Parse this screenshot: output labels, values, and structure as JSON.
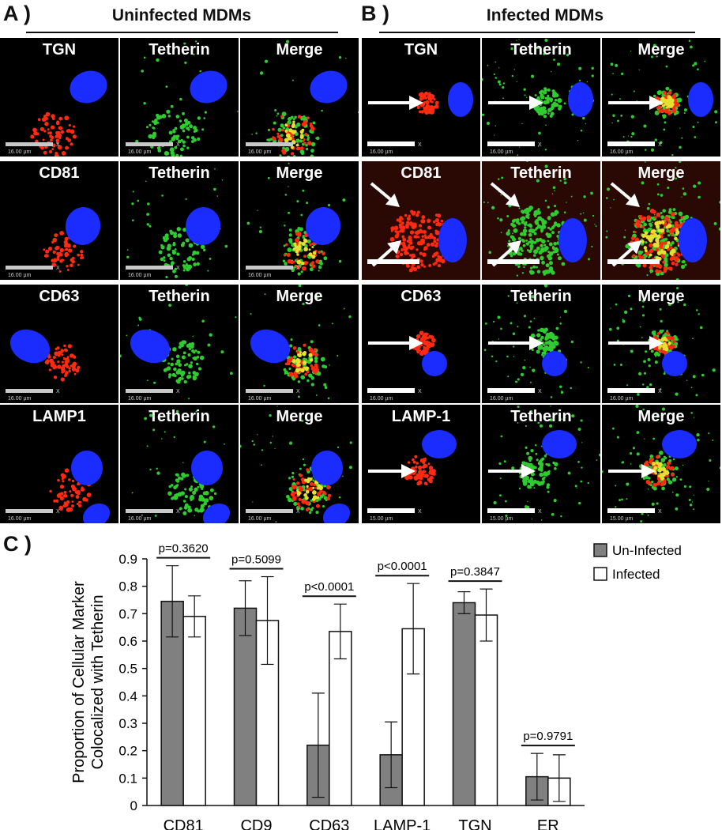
{
  "panels": {
    "a": {
      "letter": "A )",
      "title": "Uninfected MDMs",
      "rows": [
        {
          "marker": "TGN",
          "tetherin": "Tetherin",
          "merge": "Merge",
          "scale": "16.00 µm"
        },
        {
          "marker": "CD81",
          "tetherin": "Tetherin",
          "merge": "Merge",
          "scale": "16.00 µm"
        },
        {
          "marker": "CD63",
          "tetherin": "Tetherin",
          "merge": "Merge",
          "scale": "16.00 µm"
        },
        {
          "marker": "LAMP1",
          "tetherin": "Tetherin",
          "merge": "Merge",
          "scale": "16.00 µm"
        }
      ]
    },
    "b": {
      "letter": "B )",
      "title": "Infected MDMs",
      "rows": [
        {
          "marker": "TGN",
          "tetherin": "Tetherin",
          "merge": "Merge",
          "scale": "16.00 µm"
        },
        {
          "marker": "CD81",
          "tetherin": "Tetherin",
          "merge": "Merge",
          "scale": ""
        },
        {
          "marker": "CD63",
          "tetherin": "Tetherin",
          "merge": "Merge",
          "scale": "16.00 µm"
        },
        {
          "marker": "LAMP-1",
          "tetherin": "Tetherin",
          "merge": "Merge",
          "scale": "15.00 µm"
        }
      ]
    },
    "c": {
      "letter": "C )"
    }
  },
  "scale_x_mark": "X",
  "colors": {
    "nucleus": "#1a2cff",
    "marker_red": "#ff2a10",
    "tetherin_green": "#2ecc2e",
    "merge_yellow": "#e8e030",
    "uninfected_bar": "#808080",
    "infected_bar": "#ffffff"
  },
  "chart_data": {
    "type": "bar",
    "ylabel": "Proportion of Cellular Marker Colocalized with Tetherin",
    "ylim": [
      0,
      0.9
    ],
    "yticks": [
      "0",
      "0.1",
      "0.2",
      "0.3",
      "0.4",
      "0.5",
      "0.6",
      "0.7",
      "0.8",
      "0.9"
    ],
    "categories": [
      "CD81",
      "CD9",
      "CD63",
      "LAMP-1",
      "TGN",
      "ER"
    ],
    "series": [
      {
        "name": "Un-Infected",
        "values": [
          0.745,
          0.72,
          0.22,
          0.185,
          0.74,
          0.105
        ],
        "errors": [
          0.13,
          0.1,
          0.19,
          0.12,
          0.04,
          0.085
        ]
      },
      {
        "name": "Infected",
        "values": [
          0.69,
          0.675,
          0.635,
          0.645,
          0.695,
          0.1
        ],
        "errors": [
          0.075,
          0.16,
          0.1,
          0.165,
          0.095,
          0.085
        ]
      }
    ],
    "p_values": [
      "p=0.3620",
      "p=0.5099",
      "p<0.0001",
      "p<0.0001",
      "p=0.3847",
      "p=0.9791"
    ],
    "legend_position": "top-right",
    "grid": false
  }
}
